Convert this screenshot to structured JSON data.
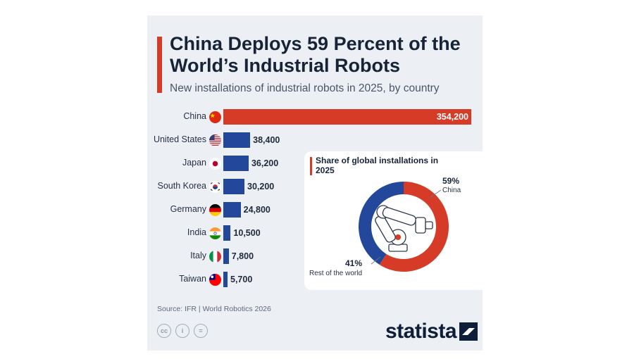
{
  "header": {
    "title": "China Deploys 59 Percent of the World’s Industrial Robots",
    "subtitle": "New installations of industrial robots in 2025, by country"
  },
  "chart_data": [
    {
      "type": "bar",
      "orientation": "horizontal",
      "title": "China Deploys 59 Percent of the World’s Industrial Robots",
      "subtitle": "New installations of industrial robots in 2025, by country",
      "categories": [
        "China",
        "United States",
        "Japan",
        "South Korea",
        "Germany",
        "India",
        "Italy",
        "Taiwan"
      ],
      "values": [
        354200,
        38400,
        36200,
        30200,
        24800,
        10500,
        7800,
        5700
      ],
      "value_labels": [
        "354,200",
        "38,400",
        "36,200",
        "30,200",
        "24,800",
        "10,500",
        "7,800",
        "5,700"
      ],
      "colors": [
        "#d63b27",
        "#23479b",
        "#23479b",
        "#23479b",
        "#23479b",
        "#23479b",
        "#23479b",
        "#23479b"
      ],
      "xlim": [
        0,
        354200
      ],
      "grid": false
    },
    {
      "type": "pie",
      "style": "donut",
      "title": "Share of global installations in 2025",
      "slices": [
        {
          "label": "China",
          "value": 59,
          "value_label": "59%",
          "color": "#d63b27"
        },
        {
          "label": "Rest of the world",
          "value": 41,
          "value_label": "41%",
          "color": "#23479b"
        }
      ]
    }
  ],
  "flags": [
    "flag-china-icon",
    "flag-us-icon",
    "flag-japan-icon",
    "flag-south-korea-icon",
    "flag-germany-icon",
    "flag-india-icon",
    "flag-italy-icon",
    "flag-taiwan-icon"
  ],
  "footer": {
    "source": "Source: IFR | World Robotics 2026",
    "license_icons": [
      "cc-icon",
      "attribution-icon",
      "no-derivatives-icon"
    ],
    "license_glyphs": [
      "cc",
      "i",
      "="
    ],
    "logo": "statista"
  }
}
